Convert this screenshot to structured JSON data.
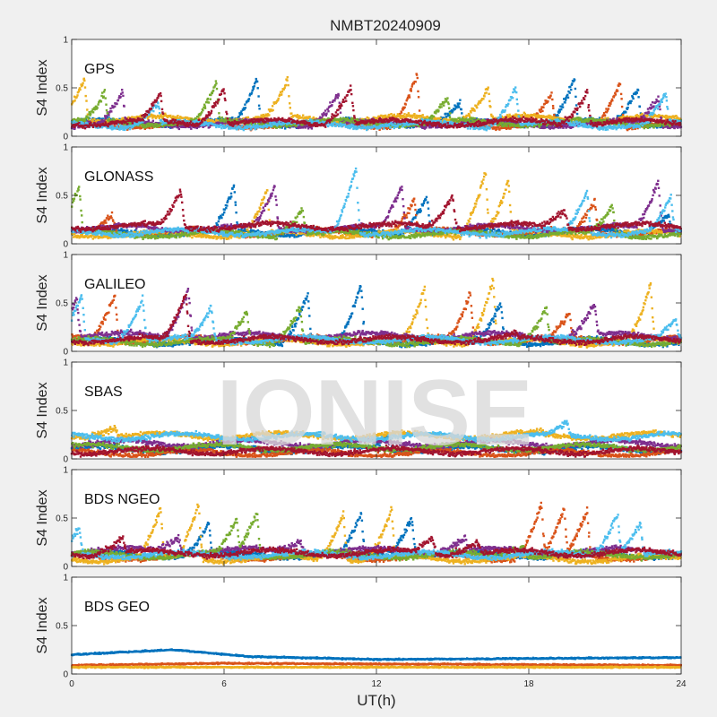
{
  "title": "NMBT20240909",
  "watermark": "IONISE",
  "chart_data": {
    "type": "scatter",
    "xlabel": "UT(h)",
    "xlim": [
      0,
      24
    ],
    "xticks": [
      "0",
      "6",
      "12",
      "18",
      "24"
    ],
    "ylabel": "S4 Index",
    "ylim": [
      0,
      1
    ],
    "yticks": [
      "0",
      "0.5",
      "1"
    ],
    "grid": false,
    "colors": [
      "#0072BD",
      "#D95319",
      "#EDB120",
      "#7E2F8E",
      "#77AC30",
      "#4DBEEE",
      "#A2142F"
    ],
    "panels": [
      {
        "label": "GPS",
        "series_summary": [
          {
            "color": "#0072BD",
            "baseline": 0.14,
            "peaks": [
              [
                7.3,
                0.6
              ],
              [
                15.3,
                0.35
              ],
              [
                19.8,
                0.6
              ],
              [
                22.3,
                0.5
              ]
            ]
          },
          {
            "color": "#D95319",
            "baseline": 0.12,
            "peaks": [
              [
                13.6,
                0.65
              ],
              [
                18.9,
                0.45
              ],
              [
                21.6,
                0.55
              ]
            ]
          },
          {
            "color": "#EDB120",
            "baseline": 0.18,
            "peaks": [
              [
                0.5,
                0.6
              ],
              [
                8.5,
                0.6
              ],
              [
                16.4,
                0.5
              ]
            ]
          },
          {
            "color": "#7E2F8E",
            "baseline": 0.13,
            "peaks": [
              [
                2.0,
                0.45
              ],
              [
                10.5,
                0.45
              ],
              [
                23.1,
                0.4
              ]
            ]
          },
          {
            "color": "#77AC30",
            "baseline": 0.14,
            "peaks": [
              [
                1.3,
                0.45
              ],
              [
                5.7,
                0.55
              ],
              [
                14.8,
                0.4
              ]
            ]
          },
          {
            "color": "#4DBEEE",
            "baseline": 0.12,
            "peaks": [
              [
                3.4,
                0.35
              ],
              [
                17.5,
                0.5
              ],
              [
                23.4,
                0.45
              ]
            ]
          },
          {
            "color": "#A2142F",
            "baseline": 0.14,
            "peaks": [
              [
                3.5,
                0.45
              ],
              [
                6.0,
                0.5
              ],
              [
                11.0,
                0.5
              ],
              [
                20.3,
                0.45
              ]
            ]
          }
        ]
      },
      {
        "label": "GLONASS",
        "series_summary": [
          {
            "color": "#0072BD",
            "baseline": 0.12,
            "peaks": [
              [
                6.4,
                0.6
              ],
              [
                14.0,
                0.5
              ],
              [
                23.5,
                0.3
              ]
            ]
          },
          {
            "color": "#D95319",
            "baseline": 0.12,
            "peaks": [
              [
                1.6,
                0.3
              ],
              [
                13.5,
                0.45
              ],
              [
                20.6,
                0.45
              ]
            ]
          },
          {
            "color": "#EDB120",
            "baseline": 0.1,
            "peaks": [
              [
                7.7,
                0.55
              ],
              [
                16.3,
                0.75
              ],
              [
                17.2,
                0.65
              ]
            ]
          },
          {
            "color": "#7E2F8E",
            "baseline": 0.16,
            "peaks": [
              [
                8.0,
                0.6
              ],
              [
                13.0,
                0.6
              ],
              [
                23.1,
                0.65
              ]
            ]
          },
          {
            "color": "#77AC30",
            "baseline": 0.1,
            "peaks": [
              [
                0.3,
                0.6
              ],
              [
                9.1,
                0.35
              ],
              [
                21.3,
                0.4
              ]
            ]
          },
          {
            "color": "#4DBEEE",
            "baseline": 0.12,
            "peaks": [
              [
                11.2,
                0.8
              ],
              [
                20.3,
                0.55
              ],
              [
                23.6,
                0.5
              ]
            ]
          },
          {
            "color": "#A2142F",
            "baseline": 0.18,
            "peaks": [
              [
                4.3,
                0.55
              ],
              [
                15.0,
                0.5
              ],
              [
                19.4,
                0.35
              ]
            ]
          }
        ]
      },
      {
        "label": "GALILEO",
        "series_summary": [
          {
            "color": "#0072BD",
            "baseline": 0.1,
            "peaks": [
              [
                9.3,
                0.6
              ],
              [
                11.4,
                0.7
              ],
              [
                16.9,
                0.5
              ]
            ]
          },
          {
            "color": "#D95319",
            "baseline": 0.12,
            "peaks": [
              [
                1.7,
                0.6
              ],
              [
                15.7,
                0.6
              ],
              [
                19.6,
                0.4
              ]
            ]
          },
          {
            "color": "#EDB120",
            "baseline": 0.1,
            "peaks": [
              [
                13.9,
                0.65
              ],
              [
                16.6,
                0.75
              ],
              [
                22.8,
                0.7
              ]
            ]
          },
          {
            "color": "#7E2F8E",
            "baseline": 0.16,
            "peaks": [
              [
                0.2,
                0.55
              ],
              [
                4.6,
                0.65
              ],
              [
                20.6,
                0.5
              ]
            ]
          },
          {
            "color": "#77AC30",
            "baseline": 0.1,
            "peaks": [
              [
                6.9,
                0.4
              ],
              [
                9.0,
                0.45
              ],
              [
                18.7,
                0.45
              ]
            ]
          },
          {
            "color": "#4DBEEE",
            "baseline": 0.12,
            "peaks": [
              [
                0.4,
                0.6
              ],
              [
                2.8,
                0.55
              ],
              [
                5.5,
                0.45
              ],
              [
                23.8,
                0.35
              ]
            ]
          },
          {
            "color": "#A2142F",
            "baseline": 0.12,
            "peaks": [
              [
                4.5,
                0.6
              ],
              [
                17.5,
                0.2
              ],
              [
                22.0,
                0.15
              ]
            ]
          }
        ]
      },
      {
        "label": "SBAS",
        "series_summary": [
          {
            "color": "#0072BD",
            "baseline": 0.1,
            "peaks": [
              [
                12.5,
                0.25
              ]
            ]
          },
          {
            "color": "#D95319",
            "baseline": 0.06,
            "peaks": []
          },
          {
            "color": "#EDB120",
            "baseline": 0.24,
            "peaks": [
              [
                1.7,
                0.32
              ],
              [
                18.5,
                0.3
              ]
            ]
          },
          {
            "color": "#7E2F8E",
            "baseline": 0.16,
            "peaks": []
          },
          {
            "color": "#77AC30",
            "baseline": 0.12,
            "peaks": []
          },
          {
            "color": "#4DBEEE",
            "baseline": 0.23,
            "peaks": [
              [
                19.5,
                0.4
              ]
            ]
          },
          {
            "color": "#A2142F",
            "baseline": 0.08,
            "peaks": []
          }
        ]
      },
      {
        "label": "BDS NGEO",
        "series_summary": [
          {
            "color": "#0072BD",
            "baseline": 0.12,
            "peaks": [
              [
                5.4,
                0.45
              ],
              [
                11.4,
                0.55
              ],
              [
                13.4,
                0.5
              ]
            ]
          },
          {
            "color": "#D95319",
            "baseline": 0.1,
            "peaks": [
              [
                18.5,
                0.65
              ],
              [
                19.4,
                0.6
              ],
              [
                20.3,
                0.6
              ]
            ]
          },
          {
            "color": "#EDB120",
            "baseline": 0.08,
            "peaks": [
              [
                3.5,
                0.6
              ],
              [
                5.0,
                0.65
              ],
              [
                10.7,
                0.55
              ],
              [
                12.6,
                0.6
              ]
            ]
          },
          {
            "color": "#7E2F8E",
            "baseline": 0.16,
            "peaks": [
              [
                4.2,
                0.3
              ],
              [
                9.0,
                0.25
              ],
              [
                15.5,
                0.3
              ]
            ]
          },
          {
            "color": "#77AC30",
            "baseline": 0.12,
            "peaks": [
              [
                6.5,
                0.5
              ],
              [
                7.3,
                0.55
              ],
              [
                17.8,
                0.2
              ]
            ]
          },
          {
            "color": "#4DBEEE",
            "baseline": 0.12,
            "peaks": [
              [
                0.3,
                0.4
              ],
              [
                21.5,
                0.55
              ],
              [
                22.4,
                0.45
              ]
            ]
          },
          {
            "color": "#A2142F",
            "baseline": 0.14,
            "peaks": [
              [
                2.0,
                0.3
              ],
              [
                14.2,
                0.3
              ],
              [
                16.0,
                0.25
              ]
            ]
          }
        ]
      },
      {
        "label": "BDS GEO",
        "series_summary": [
          {
            "color": "#0072BD",
            "baseline": 0.2,
            "profile": [
              [
                0,
                0.2
              ],
              [
                4,
                0.25
              ],
              [
                7,
                0.18
              ],
              [
                12,
                0.15
              ],
              [
                24,
                0.17
              ]
            ]
          },
          {
            "color": "#D95319",
            "baseline": 0.1,
            "profile": [
              [
                0,
                0.09
              ],
              [
                6,
                0.11
              ],
              [
                24,
                0.09
              ]
            ]
          },
          {
            "color": "#EDB120",
            "baseline": 0.07,
            "profile": [
              [
                0,
                0.07
              ],
              [
                24,
                0.07
              ]
            ]
          }
        ]
      }
    ]
  }
}
